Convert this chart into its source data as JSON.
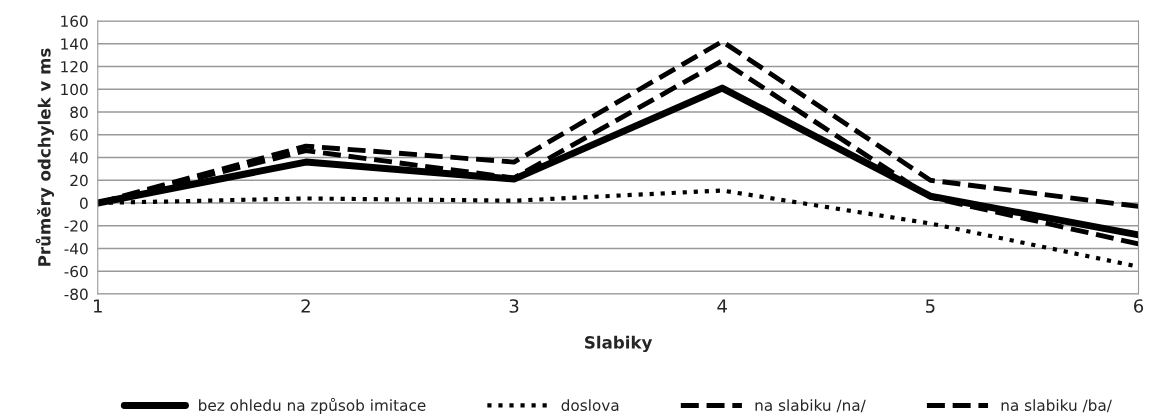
{
  "chart_data": {
    "type": "line",
    "xlabel": "Slabiky",
    "ylabel": "Průměry odchylek v ms",
    "categories": [
      "1",
      "2",
      "3",
      "4",
      "5",
      "6"
    ],
    "series": [
      {
        "name": "bez ohledu na způsob imitace",
        "color": "#000000",
        "line_style": "solid",
        "values": [
          0,
          36,
          21,
          101,
          6,
          -28
        ]
      },
      {
        "name": "doslova",
        "color": "#000000",
        "line_style": "dotted",
        "values": [
          0,
          4,
          2,
          11,
          -18,
          -56
        ]
      },
      {
        "name": "na slabiku /na/",
        "color": "#000000",
        "line_style": "dashed",
        "values": [
          0,
          46,
          22,
          125,
          5,
          -36
        ]
      },
      {
        "name": "na slabiku /ba/",
        "color": "#000000",
        "line_style": "dashed",
        "values": [
          0,
          50,
          36,
          142,
          20,
          -3
        ]
      }
    ],
    "ylim": [
      -80,
      160
    ],
    "yticks": [
      -80,
      -60,
      -40,
      -20,
      0,
      20,
      40,
      60,
      80,
      100,
      120,
      140,
      160
    ],
    "grid": "y",
    "legend": "bottom",
    "marker": "none"
  }
}
